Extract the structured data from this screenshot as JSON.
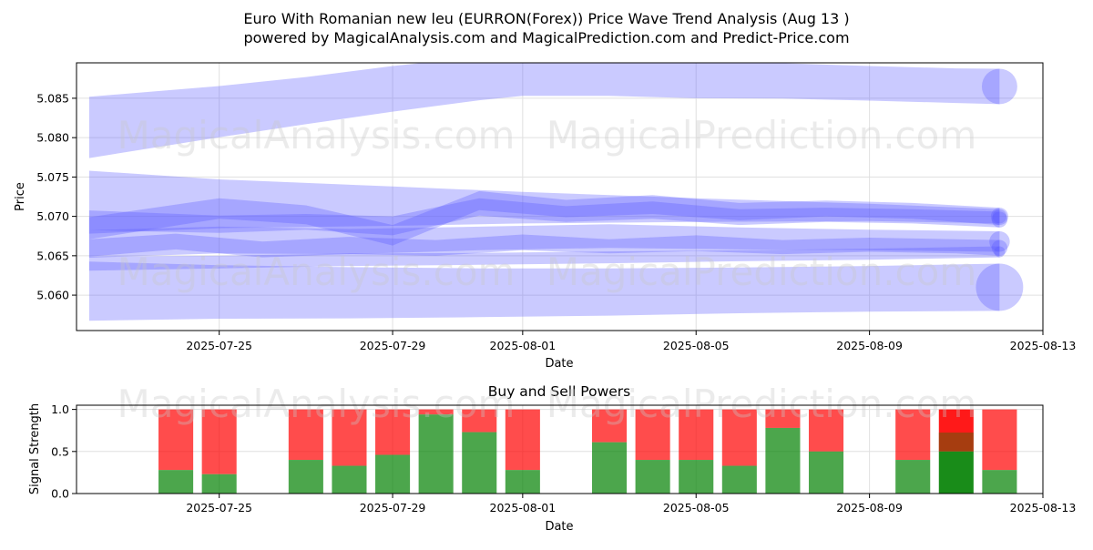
{
  "title_line1": "Euro With Romanian new leu (EURRON(Forex)) Price Wave Trend Analysis (Aug 13 )",
  "title_line2": "powered by MagicalAnalysis.com and MagicalPrediction.com and Predict-Price.com",
  "watermarks": [
    "MagicalAnalysis.com",
    "MagicalPrediction.com"
  ],
  "colors": {
    "wave": "#5a5aff",
    "buy": "#008000",
    "sell": "#ff0000",
    "grid": "#e0e0e0"
  },
  "chart_data": [
    {
      "type": "area",
      "title": "",
      "xlabel": "Date",
      "ylabel": "Price",
      "x_range": [
        "2025-07-21T17:00",
        "2025-08-13"
      ],
      "ylim": [
        5.0555,
        5.0895
      ],
      "x_ticks": [
        "2025-07-25",
        "2025-07-29",
        "2025-08-01",
        "2025-08-05",
        "2025-08-09",
        "2025-08-13"
      ],
      "y_ticks": [
        5.06,
        5.065,
        5.07,
        5.075,
        5.08,
        5.085
      ],
      "grid": true,
      "bands": [
        {
          "name": "",
          "x": [
            "2025-07-22",
            "2025-07-25",
            "2025-07-27",
            "2025-07-29",
            "2025-07-31",
            "2025-08-01",
            "2025-08-03",
            "2025-08-05",
            "2025-08-07",
            "2025-08-09",
            "2025-08-11",
            "2025-08-12"
          ],
          "center": [
            5.0813,
            5.0833,
            5.0847,
            5.0862,
            5.0875,
            5.0878,
            5.0877,
            5.0873,
            5.0872,
            5.0869,
            5.0866,
            5.0865
          ],
          "width": [
            0.0078,
            0.0065,
            0.006,
            0.0058,
            0.0055,
            0.005,
            0.0048,
            0.0046,
            0.0045,
            0.0044,
            0.0044,
            0.0045
          ]
        },
        {
          "name": "",
          "x": [
            "2025-07-22",
            "2025-07-25",
            "2025-07-29",
            "2025-08-01",
            "2025-08-05",
            "2025-08-09",
            "2025-08-12"
          ],
          "center": [
            5.0718,
            5.0716,
            5.0713,
            5.0711,
            5.0708,
            5.0705,
            5.07
          ],
          "width": [
            0.008,
            0.0062,
            0.005,
            0.004,
            0.003,
            0.0022,
            0.0018
          ]
        },
        {
          "name": "",
          "x": [
            "2025-07-22",
            "2025-07-25",
            "2025-07-27",
            "2025-07-29",
            "2025-07-31",
            "2025-08-02",
            "2025-08-04",
            "2025-08-06",
            "2025-08-08",
            "2025-08-10",
            "2025-08-12"
          ],
          "center": [
            5.0695,
            5.069,
            5.0693,
            5.0688,
            5.0712,
            5.0703,
            5.0708,
            5.0699,
            5.0702,
            5.07,
            5.0696
          ],
          "width": [
            0.0025,
            0.0022,
            0.002,
            0.0024,
            0.0022,
            0.002,
            0.0022,
            0.002,
            0.0018,
            0.0018,
            0.002
          ]
        },
        {
          "name": "",
          "x": [
            "2025-07-22",
            "2025-07-25",
            "2025-07-27",
            "2025-07-29",
            "2025-07-31",
            "2025-08-02",
            "2025-08-04",
            "2025-08-06",
            "2025-08-08",
            "2025-08-10",
            "2025-08-12"
          ],
          "center": [
            5.0685,
            5.071,
            5.0702,
            5.0676,
            5.072,
            5.071,
            5.0715,
            5.0706,
            5.071,
            5.0707,
            5.07
          ],
          "width": [
            0.0028,
            0.0026,
            0.0024,
            0.0026,
            0.0024,
            0.0022,
            0.0024,
            0.0022,
            0.002,
            0.002,
            0.0022
          ]
        },
        {
          "name": "",
          "x": [
            "2025-07-22",
            "2025-07-25",
            "2025-07-28",
            "2025-07-31",
            "2025-08-03",
            "2025-08-06",
            "2025-08-09",
            "2025-08-12"
          ],
          "center": [
            5.0665,
            5.067,
            5.0668,
            5.0672,
            5.0675,
            5.0672,
            5.067,
            5.0668
          ],
          "width": [
            0.0035,
            0.0034,
            0.0032,
            0.003,
            0.003,
            0.0028,
            0.0026,
            0.0026
          ]
        },
        {
          "name": "",
          "x": [
            "2025-07-22",
            "2025-07-24",
            "2025-07-26",
            "2025-07-28",
            "2025-07-30",
            "2025-08-01",
            "2025-08-03",
            "2025-08-05",
            "2025-08-07",
            "2025-08-09",
            "2025-08-11",
            "2025-08-12"
          ],
          "center": [
            5.066,
            5.0668,
            5.0658,
            5.0663,
            5.066,
            5.0667,
            5.0662,
            5.0666,
            5.0661,
            5.0664,
            5.0662,
            5.066
          ],
          "width": [
            0.0022,
            0.002,
            0.002,
            0.0022,
            0.002,
            0.002,
            0.0018,
            0.002,
            0.0018,
            0.0018,
            0.0018,
            0.002
          ]
        },
        {
          "name": "",
          "x": [
            "2025-07-22",
            "2025-07-25",
            "2025-07-28",
            "2025-07-31",
            "2025-08-03",
            "2025-08-06",
            "2025-08-09",
            "2025-08-12"
          ],
          "center": [
            5.064,
            5.0642,
            5.0645,
            5.0646,
            5.0648,
            5.065,
            5.0652,
            5.0655
          ],
          "width": [
            0.0018,
            0.0016,
            0.0016,
            0.0015,
            0.0015,
            0.0014,
            0.0014,
            0.0014
          ]
        },
        {
          "name": "",
          "x": [
            "2025-07-22",
            "2025-07-25",
            "2025-07-28",
            "2025-07-31",
            "2025-08-03",
            "2025-08-06",
            "2025-08-09",
            "2025-08-12"
          ],
          "center": [
            5.0605,
            5.0604,
            5.0603,
            5.0603,
            5.0604,
            5.0606,
            5.0608,
            5.061
          ],
          "width": [
            0.0075,
            0.0068,
            0.0065,
            0.0062,
            0.006,
            0.0058,
            0.0058,
            0.006
          ]
        }
      ]
    },
    {
      "type": "bar",
      "title": "Buy and Sell Powers",
      "xlabel": "Date",
      "ylabel": "Signal Strength",
      "ylim": [
        0,
        1.05
      ],
      "y_ticks": [
        0.0,
        0.5,
        1.0
      ],
      "x_ticks": [
        "2025-07-25",
        "2025-07-29",
        "2025-08-01",
        "2025-08-05",
        "2025-08-09",
        "2025-08-13"
      ],
      "grid": true,
      "categories": [
        "2025-07-24",
        "2025-07-25",
        "2025-07-27",
        "2025-07-28",
        "2025-07-29",
        "2025-07-30",
        "2025-07-31",
        "2025-08-01",
        "2025-08-03",
        "2025-08-04",
        "2025-08-05",
        "2025-08-06",
        "2025-08-07",
        "2025-08-08",
        "2025-08-10",
        "2025-08-11",
        "2025-08-12"
      ],
      "series": [
        {
          "name": "",
          "values": [
            0.28,
            0.23,
            0.4,
            0.33,
            0.46,
            0.94,
            0.73,
            0.28,
            0.61,
            0.4,
            0.4,
            0.33,
            0.78,
            0.5,
            0.4,
            0.5,
            0.28
          ]
        },
        {
          "name": "",
          "values": [
            0.72,
            0.77,
            0.6,
            0.67,
            0.54,
            0.06,
            0.27,
            0.72,
            0.39,
            0.6,
            0.6,
            0.67,
            0.22,
            0.5,
            0.6,
            0.5,
            0.72
          ]
        }
      ],
      "highlighted_category": "2025-08-11"
    }
  ]
}
